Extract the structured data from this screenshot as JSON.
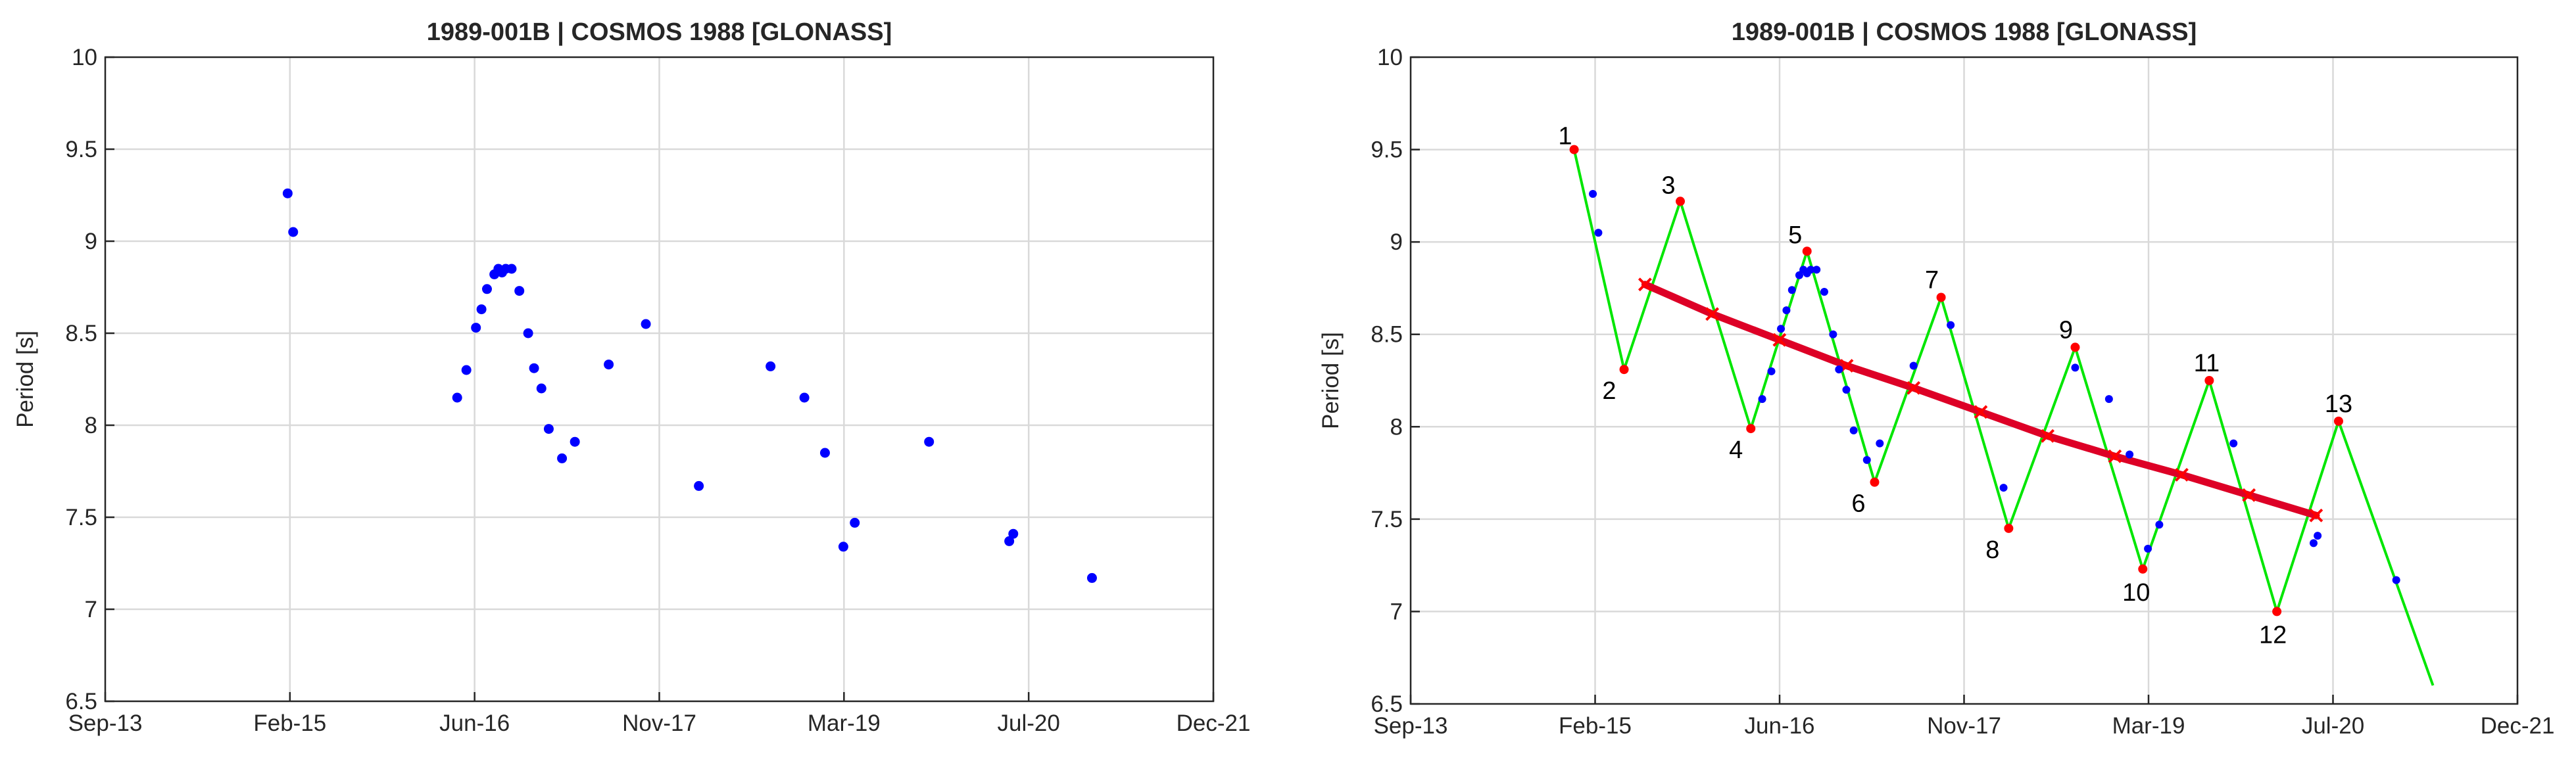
{
  "colors": {
    "observed": "#0000ff",
    "zigzag": "#00e600",
    "trend": "#dd0026",
    "extrema": "#ff0000",
    "grid": "#d9d9d9",
    "axis": "#262626"
  },
  "chart_data": [
    {
      "type": "scatter",
      "title": "1989-001B | COSMOS 1988 [GLONASS]",
      "xlabel": "",
      "ylabel": "Period [s]",
      "x_tick_labels": [
        "Sep-13",
        "Feb-15",
        "Jun-16",
        "Nov-17",
        "Mar-19",
        "Jul-20",
        "Dec-21"
      ],
      "y_tick_labels": [
        "6.5",
        "7",
        "7.5",
        "8",
        "8.5",
        "9",
        "9.5",
        "10"
      ],
      "xlim": [
        "2013-09-01",
        "2021-12-01"
      ],
      "ylim": [
        6.5,
        10
      ],
      "grid": true,
      "series": [
        {
          "points": [
            [
              "2015-01-10",
              9.26
            ],
            [
              "2015-01-25",
              9.05
            ],
            [
              "2016-04-15",
              8.15
            ],
            [
              "2016-05-10",
              8.3
            ],
            [
              "2016-06-05",
              8.53
            ],
            [
              "2016-06-20",
              8.63
            ],
            [
              "2016-07-05",
              8.74
            ],
            [
              "2016-07-25",
              8.82
            ],
            [
              "2016-08-05",
              8.85
            ],
            [
              "2016-08-15",
              8.83
            ],
            [
              "2016-08-25",
              8.85
            ],
            [
              "2016-09-10",
              8.85
            ],
            [
              "2016-10-01",
              8.73
            ],
            [
              "2016-10-25",
              8.5
            ],
            [
              "2016-11-10",
              8.31
            ],
            [
              "2016-11-30",
              8.2
            ],
            [
              "2016-12-20",
              7.98
            ],
            [
              "2017-01-25",
              7.82
            ],
            [
              "2017-03-01",
              7.91
            ],
            [
              "2017-06-01",
              8.33
            ],
            [
              "2017-09-10",
              8.55
            ],
            [
              "2018-02-01",
              7.67
            ],
            [
              "2018-08-15",
              8.32
            ],
            [
              "2018-11-15",
              8.15
            ],
            [
              "2019-01-10",
              7.85
            ],
            [
              "2019-03-01",
              7.34
            ],
            [
              "2019-04-01",
              7.47
            ],
            [
              "2019-10-20",
              7.91
            ],
            [
              "2020-05-25",
              7.37
            ],
            [
              "2020-06-05",
              7.41
            ],
            [
              "2021-01-05",
              7.17
            ]
          ]
        }
      ]
    },
    {
      "type": "line",
      "title": "1989-001B | COSMOS 1988 [GLONASS]",
      "xlabel": "",
      "ylabel": "Period [s]",
      "x_tick_labels": [
        "Sep-13",
        "Feb-15",
        "Jun-16",
        "Nov-17",
        "Mar-19",
        "Jul-20",
        "Dec-21"
      ],
      "y_tick_labels": [
        "6.5",
        "7",
        "7.5",
        "8",
        "8.5",
        "9",
        "9.5",
        "10"
      ],
      "xlim": [
        "2013-09-01",
        "2021-12-01"
      ],
      "ylim": [
        6.5,
        10
      ],
      "grid": true,
      "observed_points": [
        [
          "2015-01-10",
          9.26
        ],
        [
          "2015-01-25",
          9.05
        ],
        [
          "2016-04-15",
          8.15
        ],
        [
          "2016-05-10",
          8.3
        ],
        [
          "2016-06-05",
          8.53
        ],
        [
          "2016-06-20",
          8.63
        ],
        [
          "2016-07-05",
          8.74
        ],
        [
          "2016-07-25",
          8.82
        ],
        [
          "2016-08-05",
          8.85
        ],
        [
          "2016-08-15",
          8.83
        ],
        [
          "2016-08-25",
          8.85
        ],
        [
          "2016-09-10",
          8.85
        ],
        [
          "2016-10-01",
          8.73
        ],
        [
          "2016-10-25",
          8.5
        ],
        [
          "2016-11-10",
          8.31
        ],
        [
          "2016-11-30",
          8.2
        ],
        [
          "2016-12-20",
          7.98
        ],
        [
          "2017-01-25",
          7.82
        ],
        [
          "2017-03-01",
          7.91
        ],
        [
          "2017-06-01",
          8.33
        ],
        [
          "2017-09-10",
          8.55
        ],
        [
          "2018-02-01",
          7.67
        ],
        [
          "2018-08-15",
          8.32
        ],
        [
          "2018-11-15",
          8.15
        ],
        [
          "2019-01-10",
          7.85
        ],
        [
          "2019-03-01",
          7.34
        ],
        [
          "2019-04-01",
          7.47
        ],
        [
          "2019-10-20",
          7.91
        ],
        [
          "2020-05-25",
          7.37
        ],
        [
          "2020-06-05",
          7.41
        ],
        [
          "2021-01-05",
          7.17
        ]
      ],
      "zigzag": [
        [
          "2014-11-20",
          9.5
        ],
        [
          "2015-04-05",
          8.31
        ],
        [
          "2015-09-05",
          9.22
        ],
        [
          "2016-03-15",
          7.99
        ],
        [
          "2016-08-15",
          8.95
        ],
        [
          "2017-02-15",
          7.7
        ],
        [
          "2017-08-15",
          8.7
        ],
        [
          "2018-02-15",
          7.45
        ],
        [
          "2018-08-15",
          8.43
        ],
        [
          "2019-02-15",
          7.23
        ],
        [
          "2019-08-15",
          8.25
        ],
        [
          "2020-02-15",
          7.0
        ],
        [
          "2020-08-01",
          8.03
        ],
        [
          "2021-04-15",
          6.6
        ]
      ],
      "extrema_labels": [
        "1",
        "2",
        "3",
        "4",
        "5",
        "6",
        "7",
        "8",
        "9",
        "10",
        "11",
        "12",
        "13"
      ],
      "trend": [
        [
          "2015-06-01",
          8.77
        ],
        [
          "2015-12-01",
          8.61
        ],
        [
          "2016-06-01",
          8.47
        ],
        [
          "2016-12-01",
          8.33
        ],
        [
          "2017-06-01",
          8.21
        ],
        [
          "2017-12-01",
          8.08
        ],
        [
          "2018-06-01",
          7.95
        ],
        [
          "2018-12-01",
          7.84
        ],
        [
          "2019-06-01",
          7.74
        ],
        [
          "2019-12-01",
          7.63
        ],
        [
          "2020-06-01",
          7.52
        ]
      ]
    }
  ]
}
